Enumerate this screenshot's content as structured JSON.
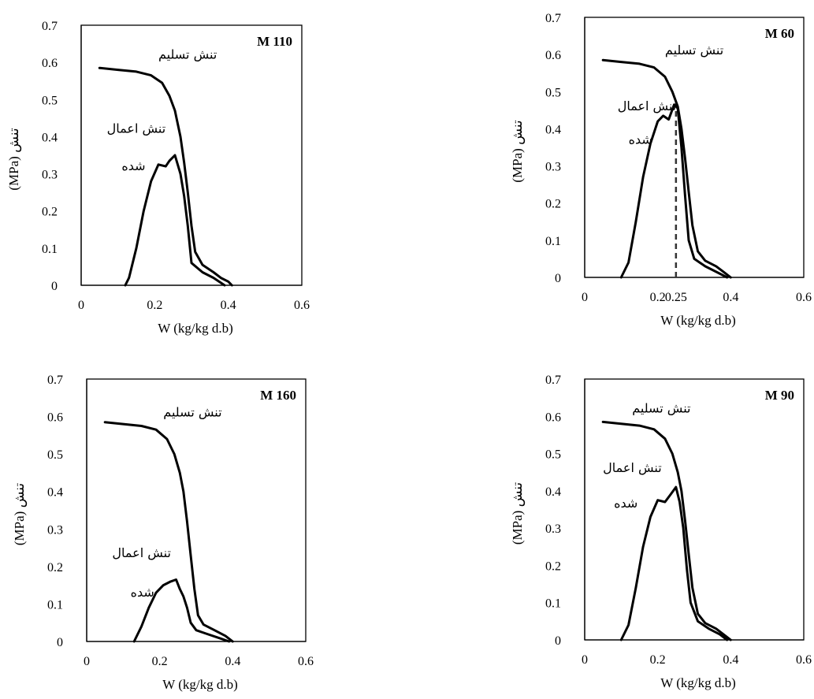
{
  "chart_data": [
    {
      "type": "line",
      "title": "M 110",
      "xlabel": "W (kg/kg d.b)",
      "ylabel": "(MPa) تنش",
      "xlim": [
        0,
        0.6
      ],
      "ylim": [
        0,
        0.7
      ],
      "xticks": [
        "0",
        "0.2",
        "0.4",
        "0.6"
      ],
      "yticks": [
        "0",
        "0.1",
        "0.2",
        "0.3",
        "0.4",
        "0.5",
        "0.6",
        "0.7"
      ],
      "series": [
        {
          "name": "تنش تسلیم",
          "x": [
            0.05,
            0.1,
            0.15,
            0.19,
            0.22,
            0.24,
            0.255,
            0.27,
            0.28,
            0.29,
            0.3,
            0.31,
            0.33,
            0.36,
            0.38,
            0.4,
            0.41
          ],
          "y": [
            0.585,
            0.58,
            0.575,
            0.565,
            0.545,
            0.51,
            0.47,
            0.4,
            0.33,
            0.25,
            0.16,
            0.09,
            0.055,
            0.035,
            0.02,
            0.01,
            0.0
          ]
        },
        {
          "name": "تنش اعمال شده",
          "x": [
            0.12,
            0.13,
            0.15,
            0.17,
            0.19,
            0.21,
            0.23,
            0.24,
            0.255,
            0.27,
            0.28,
            0.29,
            0.3,
            0.33,
            0.36,
            0.39
          ],
          "y": [
            0.0,
            0.02,
            0.1,
            0.2,
            0.28,
            0.325,
            0.32,
            0.335,
            0.35,
            0.3,
            0.24,
            0.16,
            0.06,
            0.035,
            0.02,
            0.0
          ]
        }
      ],
      "annotations": [
        {
          "text": "تنش تسلیم",
          "x": 0.21,
          "y": 0.61
        },
        {
          "text": "تنش اعمال",
          "x": 0.07,
          "y": 0.41
        },
        {
          "text": "شده",
          "x": 0.11,
          "y": 0.31
        }
      ]
    },
    {
      "type": "line",
      "title": "M 60",
      "xlabel": "W (kg/kg d.b)",
      "ylabel": "(MPa) تنش",
      "xlim": [
        0,
        0.6
      ],
      "ylim": [
        0,
        0.7
      ],
      "xticks": [
        "0",
        "0.2",
        "0.25",
        "0.4",
        "0.6"
      ],
      "xtick_values": [
        0,
        0.2,
        0.25,
        0.4,
        0.6
      ],
      "yticks": [
        "0",
        "0.1",
        "0.2",
        "0.3",
        "0.4",
        "0.5",
        "0.6",
        "0.7"
      ],
      "vline": 0.25,
      "series": [
        {
          "name": "تنش تسلیم",
          "x": [
            0.05,
            0.1,
            0.15,
            0.19,
            0.22,
            0.24,
            0.255,
            0.265,
            0.275,
            0.285,
            0.295,
            0.31,
            0.33,
            0.36,
            0.38,
            0.4
          ],
          "y": [
            0.585,
            0.58,
            0.575,
            0.565,
            0.54,
            0.5,
            0.46,
            0.4,
            0.32,
            0.23,
            0.14,
            0.07,
            0.045,
            0.03,
            0.015,
            0.0
          ]
        },
        {
          "name": "تنش اعمال شده",
          "x": [
            0.1,
            0.12,
            0.14,
            0.16,
            0.18,
            0.2,
            0.215,
            0.23,
            0.245,
            0.255,
            0.265,
            0.275,
            0.285,
            0.3,
            0.33,
            0.36,
            0.39
          ],
          "y": [
            0.0,
            0.04,
            0.15,
            0.27,
            0.36,
            0.42,
            0.435,
            0.425,
            0.465,
            0.455,
            0.35,
            0.22,
            0.1,
            0.05,
            0.03,
            0.015,
            0.0
          ]
        }
      ],
      "annotations": [
        {
          "text": "تنش تسلیم",
          "x": 0.22,
          "y": 0.6
        },
        {
          "text": "تنش اعمال",
          "x": 0.09,
          "y": 0.45
        },
        {
          "text": "شده",
          "x": 0.12,
          "y": 0.36
        }
      ]
    },
    {
      "type": "line",
      "title": "M 160",
      "xlabel": "W (kg/kg d.b)",
      "ylabel": "(MPa) تنش",
      "xlim": [
        0,
        0.6
      ],
      "ylim": [
        0,
        0.7
      ],
      "xticks": [
        "0",
        "0.2",
        "0.4",
        "0.6"
      ],
      "yticks": [
        "0",
        "0.1",
        "0.2",
        "0.3",
        "0.4",
        "0.5",
        "0.6",
        "0.7"
      ],
      "series": [
        {
          "name": "تنش تسلیم",
          "x": [
            0.05,
            0.1,
            0.15,
            0.19,
            0.22,
            0.24,
            0.255,
            0.265,
            0.275,
            0.285,
            0.295,
            0.305,
            0.32,
            0.35,
            0.38,
            0.4
          ],
          "y": [
            0.585,
            0.58,
            0.575,
            0.565,
            0.54,
            0.5,
            0.45,
            0.4,
            0.32,
            0.23,
            0.14,
            0.07,
            0.045,
            0.03,
            0.015,
            0.0
          ]
        },
        {
          "name": "تنش اعمال شده",
          "x": [
            0.13,
            0.15,
            0.17,
            0.19,
            0.21,
            0.23,
            0.245,
            0.255,
            0.265,
            0.275,
            0.285,
            0.3,
            0.33,
            0.36,
            0.39
          ],
          "y": [
            0.0,
            0.04,
            0.09,
            0.13,
            0.15,
            0.16,
            0.165,
            0.14,
            0.12,
            0.09,
            0.05,
            0.03,
            0.02,
            0.01,
            0.0
          ]
        }
      ],
      "annotations": [
        {
          "text": "تنش تسلیم",
          "x": 0.21,
          "y": 0.6
        },
        {
          "text": "تنش اعمال",
          "x": 0.07,
          "y": 0.225
        },
        {
          "text": "شده",
          "x": 0.12,
          "y": 0.12
        }
      ]
    },
    {
      "type": "line",
      "title": "M 90",
      "xlabel": "W (kg/kg d.b)",
      "ylabel": "(MPa) تنش",
      "xlim": [
        0,
        0.6
      ],
      "ylim": [
        0,
        0.7
      ],
      "xticks": [
        "0",
        "0.2",
        "0.4",
        "0.6"
      ],
      "yticks": [
        "0",
        "0.1",
        "0.2",
        "0.3",
        "0.4",
        "0.5",
        "0.6",
        "0.7"
      ],
      "series": [
        {
          "name": "تنش تسلیم",
          "x": [
            0.05,
            0.1,
            0.15,
            0.19,
            0.22,
            0.24,
            0.255,
            0.265,
            0.275,
            0.285,
            0.295,
            0.31,
            0.33,
            0.36,
            0.38,
            0.4
          ],
          "y": [
            0.585,
            0.58,
            0.575,
            0.565,
            0.54,
            0.5,
            0.45,
            0.4,
            0.32,
            0.23,
            0.14,
            0.07,
            0.045,
            0.03,
            0.015,
            0.0
          ]
        },
        {
          "name": "تنش اعمال شده",
          "x": [
            0.1,
            0.12,
            0.14,
            0.16,
            0.18,
            0.2,
            0.22,
            0.235,
            0.25,
            0.26,
            0.27,
            0.28,
            0.29,
            0.31,
            0.34,
            0.37,
            0.39
          ],
          "y": [
            0.0,
            0.04,
            0.14,
            0.25,
            0.33,
            0.375,
            0.37,
            0.39,
            0.41,
            0.37,
            0.3,
            0.19,
            0.1,
            0.05,
            0.03,
            0.015,
            0.0
          ]
        }
      ],
      "annotations": [
        {
          "text": "تنش تسلیم",
          "x": 0.13,
          "y": 0.61
        },
        {
          "text": "تنش اعمال",
          "x": 0.05,
          "y": 0.45
        },
        {
          "text": "شده",
          "x": 0.08,
          "y": 0.355
        }
      ]
    }
  ]
}
